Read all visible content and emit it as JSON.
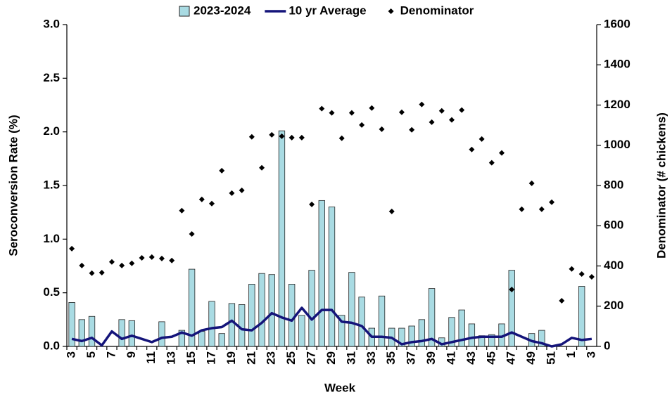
{
  "chart_data": {
    "type": "bar",
    "x_label": "Week",
    "y_label": "Seroconversion Rate (%)",
    "y2_label": "Denominator  (# chickens)",
    "legend": "top",
    "categories": [
      "3",
      null,
      "5",
      null,
      "7",
      null,
      "9",
      null,
      "11",
      null,
      "13",
      null,
      "15",
      null,
      "17",
      null,
      "19",
      null,
      "21",
      null,
      "23",
      null,
      "25",
      null,
      "27",
      null,
      "29",
      null,
      "31",
      null,
      "33",
      null,
      "35",
      null,
      "37",
      null,
      "39",
      null,
      "41",
      null,
      "43",
      null,
      "45",
      null,
      "47",
      null,
      "49",
      null,
      "51",
      null,
      "1",
      null,
      "3"
    ],
    "ylim": [
      0,
      3
    ],
    "yticks": [
      {
        "value": 0,
        "label": "0.0"
      },
      0.5,
      {
        "value": 1,
        "label": "1.0"
      },
      1.5,
      {
        "value": 2,
        "label": "2.0"
      },
      2.5,
      {
        "value": 3,
        "label": "3.0"
      }
    ],
    "y2lim": [
      0,
      1600
    ],
    "y2ticks": [
      0,
      200,
      400,
      600,
      800,
      1000,
      1200,
      1400,
      1600
    ],
    "series": [
      {
        "name": "2023-2024",
        "type": "bar",
        "color": "#a9dbe3",
        "values": [
          0.41,
          0.25,
          0.28,
          0,
          0,
          0.25,
          0.24,
          0,
          0,
          0.23,
          0,
          0.15,
          0.72,
          0.14,
          0.42,
          0.12,
          0.4,
          0.39,
          0.58,
          0.68,
          0.67,
          2.01,
          0.58,
          0.29,
          0.71,
          1.36,
          1.3,
          0.29,
          0.69,
          0.46,
          0.17,
          0.47,
          0.17,
          0.17,
          0.19,
          0.25,
          0.54,
          0.08,
          0.27,
          0.34,
          0.21,
          0.1,
          0.11,
          0.21,
          0.71,
          0,
          0.12,
          0.15,
          0,
          0,
          0,
          0.56,
          0
        ]
      },
      {
        "name": "10 yr Average",
        "type": "line",
        "color": "#14147a",
        "values": [
          0.07,
          0.05,
          0.08,
          0.01,
          0.14,
          0.07,
          0.1,
          0.07,
          0.04,
          0.08,
          0.09,
          0.13,
          0.1,
          0.15,
          0.17,
          0.18,
          0.24,
          0.16,
          0.15,
          0.22,
          0.31,
          0.27,
          0.24,
          0.36,
          0.25,
          0.34,
          0.34,
          0.23,
          0.22,
          0.19,
          0.09,
          0.09,
          0.08,
          0.02,
          0.04,
          0.05,
          0.07,
          0.02,
          0.04,
          0.06,
          0.08,
          0.09,
          0.09,
          0.09,
          0.13,
          0.09,
          0.05,
          0.03,
          0.0,
          0.02,
          0.08,
          0.06,
          0.07
        ]
      },
      {
        "name": "Denominator",
        "type": "scatter",
        "axis": "y2",
        "color": "#000000",
        "values": [
          486,
          402,
          364,
          367,
          420,
          402,
          413,
          440,
          444,
          437,
          427,
          675,
          559,
          731,
          710,
          874,
          762,
          776,
          1042,
          888,
          1052,
          1045,
          1038,
          1038,
          706,
          1182,
          1161,
          1035,
          1161,
          1101,
          1185,
          1080,
          671,
          1164,
          1077,
          1203,
          1115,
          1171,
          1126,
          1175,
          979,
          1031,
          913,
          962,
          283,
          682,
          811,
          682,
          717,
          227,
          385,
          360,
          346
        ]
      }
    ]
  }
}
